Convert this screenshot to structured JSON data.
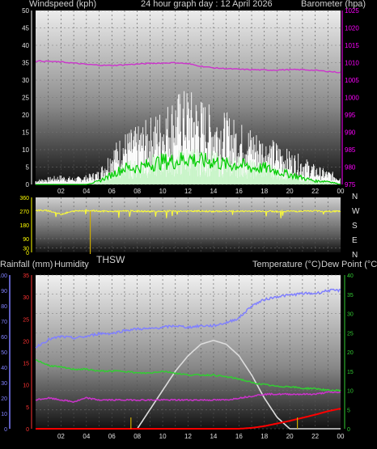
{
  "header": {
    "left": "Windspeed (kph)",
    "center": "24 hour graph day : 12 April 2026",
    "right": "Barometer (hpa)"
  },
  "labels": {
    "thsw": "THSW",
    "rain": "Rainfall (mm)",
    "humidity": "Humidity",
    "temp": "Temperature (°C)",
    "dew": "Dew Point (°C)"
  },
  "colors": {
    "wind_gust": "#ffffff",
    "wind_avg": "#c9f5c9",
    "wind_mean": "#00cc00",
    "barometer": "#cc33cc",
    "direction": "#ffff33",
    "humidity": "#8080ff",
    "temperature": "#33cc33",
    "dewpoint": "#cc33cc",
    "solar": "#dddddd",
    "rain": "#ff0000",
    "rain_axis": "#ff3333",
    "pressure_axis": "#ff00ff",
    "temp_axis": "#33cc33",
    "direction_axis": "#ffff00",
    "humidity_axis": "#8080ff",
    "vlines": "#ccaa00"
  },
  "chart_data": [
    {
      "type": "line",
      "xlabel": "",
      "x_ticks": [
        "02",
        "04",
        "06",
        "08",
        "10",
        "12",
        "14",
        "16",
        "18",
        "20",
        "22",
        "00"
      ],
      "y_left": {
        "label": "Windspeed (kph)",
        "lim": [
          0,
          50
        ],
        "ticks": [
          0,
          5,
          10,
          15,
          20,
          25,
          30,
          35,
          40,
          45,
          50
        ]
      },
      "y_right": {
        "label": "Barometer (hpa)",
        "lim": [
          975,
          1025
        ],
        "ticks": [
          975,
          980,
          985,
          990,
          995,
          1000,
          1005,
          1010,
          1015,
          1020,
          1025
        ]
      },
      "series": [
        {
          "name": "Barometer (hpa)",
          "axis": "right",
          "x": [
            0,
            1,
            2,
            3,
            4,
            5,
            6,
            7,
            8,
            9,
            10,
            11,
            12,
            13,
            14,
            15,
            16,
            17,
            18,
            19,
            20,
            21,
            22,
            23,
            24
          ],
          "y": [
            1010.5,
            1010.4,
            1010.2,
            1009.9,
            1009.5,
            1009.3,
            1009.2,
            1009.4,
            1009.6,
            1009.8,
            1009.9,
            1010.0,
            1009.7,
            1009.0,
            1008.5,
            1008.3,
            1008.1,
            1008.0,
            1007.9,
            1007.9,
            1008.0,
            1008.0,
            1007.8,
            1007.5,
            1007.2
          ]
        },
        {
          "name": "Wind gust (kph)",
          "axis": "left",
          "x": [
            0,
            1,
            2,
            3,
            4,
            5,
            6,
            7,
            8,
            9,
            10,
            11,
            12,
            13,
            14,
            15,
            16,
            17,
            18,
            19,
            20,
            21,
            22,
            23,
            24
          ],
          "y": [
            1,
            1.5,
            2,
            1.5,
            2,
            3,
            8,
            11,
            12,
            14,
            16,
            19,
            20,
            18,
            16,
            15,
            13,
            12,
            10,
            9,
            7,
            6,
            4,
            3,
            2
          ]
        },
        {
          "name": "Wind average (kph)",
          "axis": "left",
          "x": [
            0,
            1,
            2,
            3,
            4,
            5,
            6,
            7,
            8,
            9,
            10,
            11,
            12,
            13,
            14,
            15,
            16,
            17,
            18,
            19,
            20,
            21,
            22,
            23,
            24
          ],
          "y": [
            0,
            0,
            0,
            0,
            0,
            1,
            3,
            5,
            5,
            6,
            7,
            7,
            8,
            7,
            7,
            6,
            6,
            5,
            5,
            4,
            3,
            2,
            1,
            1,
            0
          ]
        }
      ]
    },
    {
      "type": "line",
      "y_left": {
        "lim": [
          0,
          360
        ],
        "ticks": [
          0,
          30,
          90,
          180,
          270,
          360
        ]
      },
      "y_right_labels": [
        "N",
        "W",
        "S",
        "E",
        "N"
      ],
      "series": [
        {
          "name": "Wind direction (°)",
          "x": [
            0,
            1,
            2,
            3,
            4,
            5,
            6,
            7,
            8,
            9,
            10,
            11,
            12,
            13,
            14,
            15,
            16,
            17,
            18,
            19,
            20,
            21,
            22,
            23,
            24
          ],
          "y": [
            275,
            273,
            250,
            270,
            275,
            270,
            268,
            272,
            270,
            268,
            270,
            271,
            269,
            270,
            268,
            270,
            269,
            270,
            271,
            268,
            270,
            269,
            272,
            268,
            270
          ]
        }
      ],
      "markers": [
        {
          "x": 4.3,
          "label": "THSW"
        }
      ]
    },
    {
      "type": "line",
      "x_ticks": [
        "02",
        "04",
        "06",
        "08",
        "10",
        "12",
        "14",
        "16",
        "18",
        "20",
        "22",
        "00"
      ],
      "axes": {
        "humidity": {
          "lim": [
            0,
            100
          ],
          "ticks": [
            0,
            10,
            20,
            30,
            40,
            50,
            60,
            70,
            80,
            90,
            100
          ]
        },
        "rainfall": {
          "lim": [
            0,
            35
          ],
          "ticks": [
            0,
            5,
            10,
            15,
            20,
            25,
            30,
            35
          ]
        },
        "temperature": {
          "lim": [
            0,
            40
          ],
          "ticks": [
            0,
            5,
            10,
            15,
            20,
            25,
            30,
            35,
            40
          ]
        }
      },
      "series": [
        {
          "name": "Humidity",
          "axis": "humidity",
          "x": [
            0,
            1,
            2,
            3,
            4,
            5,
            6,
            7,
            8,
            9,
            10,
            11,
            12,
            13,
            14,
            15,
            16,
            17,
            18,
            19,
            20,
            21,
            22,
            23,
            24
          ],
          "y": [
            53,
            58,
            60,
            59,
            60,
            62,
            62,
            64,
            65,
            65,
            66,
            67,
            66,
            67,
            67,
            69,
            72,
            80,
            84,
            86,
            87,
            88,
            88,
            90,
            90
          ]
        },
        {
          "name": "Temperature (°C)",
          "axis": "temperature",
          "x": [
            0,
            1,
            2,
            3,
            4,
            5,
            6,
            7,
            8,
            9,
            10,
            11,
            12,
            13,
            14,
            15,
            16,
            17,
            18,
            19,
            20,
            21,
            22,
            23,
            24
          ],
          "y": [
            18,
            16.5,
            16,
            15.5,
            15.5,
            15,
            15,
            15,
            14.5,
            14.5,
            15,
            14.5,
            14,
            14,
            14,
            13.5,
            13,
            12,
            11.5,
            11,
            11,
            10.5,
            10.5,
            10,
            10
          ]
        },
        {
          "name": "Dew Point (°C)",
          "axis": "temperature",
          "x": [
            0,
            1,
            2,
            3,
            4,
            5,
            6,
            7,
            8,
            9,
            10,
            11,
            12,
            13,
            14,
            15,
            16,
            17,
            18,
            19,
            20,
            21,
            22,
            23,
            24
          ],
          "y": [
            7.5,
            8,
            7.5,
            7,
            8,
            7.5,
            7.5,
            7.5,
            7.5,
            7.5,
            7.5,
            7.5,
            7.5,
            7.5,
            7.5,
            7.5,
            8,
            8.5,
            9,
            9,
            9,
            9,
            9,
            9.5,
            9.5
          ]
        },
        {
          "name": "Solar",
          "axis": "temperature",
          "x": [
            0,
            2,
            4,
            6,
            7,
            8,
            9,
            10,
            11,
            12,
            13,
            14,
            15,
            16,
            17,
            18,
            19,
            20,
            21,
            22,
            24
          ],
          "y": [
            0,
            0,
            0,
            0,
            0,
            0,
            5,
            10,
            15,
            19,
            22,
            23,
            22,
            19,
            14,
            8,
            3,
            0,
            0,
            0,
            0
          ]
        },
        {
          "name": "Rainfall (mm)",
          "axis": "rainfall",
          "x": [
            0,
            16,
            17,
            18,
            19,
            20,
            21,
            22,
            23,
            24
          ],
          "y": [
            0,
            0,
            0.2,
            0.6,
            1.2,
            1.8,
            2.5,
            3.2,
            4.0,
            4.6
          ]
        }
      ],
      "markers": [
        {
          "x": 7.5
        },
        {
          "x": 20.6
        }
      ]
    }
  ]
}
